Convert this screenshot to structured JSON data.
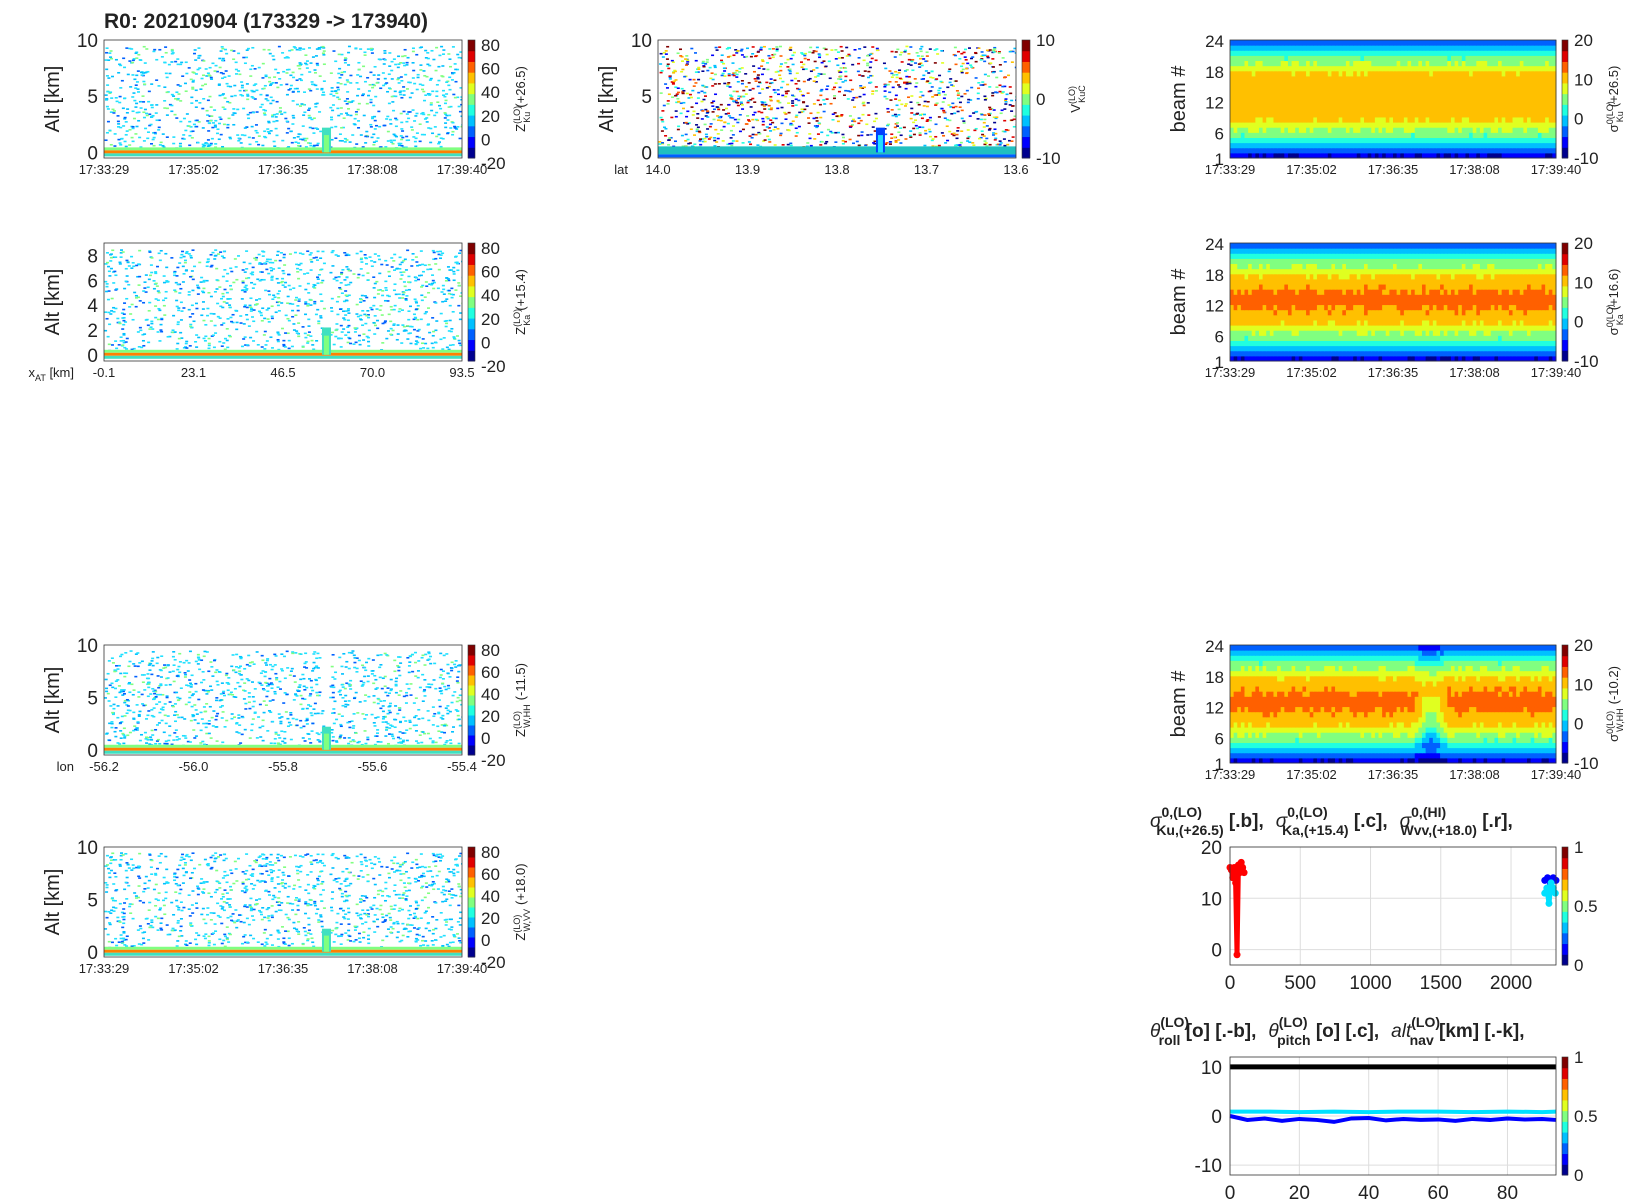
{
  "figure_title": "R0:  20210904 (173329 -> 173940)",
  "colormap": [
    "#00008f",
    "#0000ff",
    "#0060ff",
    "#00c0ff",
    "#20ffe0",
    "#80ff80",
    "#e0ff20",
    "#ffc000",
    "#ff6000",
    "#e00000",
    "#800000"
  ],
  "chart_data": [
    {
      "id": "zku",
      "type": "heatmap",
      "ylabel": "Alt [km]",
      "yticks": [
        "0",
        "5",
        "10"
      ],
      "ylim": [
        -0.5,
        10
      ],
      "xlabel": "",
      "xticks": [
        "17:33:29",
        "17:35:02",
        "17:36:35",
        "17:38:08",
        "17:39:40"
      ],
      "cbar_ticks": [
        "80",
        "60",
        "40",
        "20",
        "0",
        "-20"
      ],
      "clim": [
        -30,
        80
      ],
      "cbar_label_main": "Z",
      "cbar_label_sup": "(LO)",
      "cbar_label_sub": "Ku",
      "cbar_label_suffix": "(+26.5)",
      "description": "sparse noise field (-10..10 dBZ) above surface band at 0 km; convective column near 17:37:40 up to ~2 km"
    },
    {
      "id": "vkuc",
      "type": "heatmap",
      "ylabel": "Alt [km]",
      "yticks": [
        "0",
        "5",
        "10"
      ],
      "ylim": [
        -0.5,
        10
      ],
      "xlabel": "lat",
      "xticks": [
        "14.0",
        "13.9",
        "13.8",
        "13.7",
        "13.6"
      ],
      "cbar_ticks": [
        "10",
        "0",
        "-10"
      ],
      "clim": [
        -13,
        13
      ],
      "cbar_label_main": "V",
      "cbar_label_sup": "(LO)",
      "cbar_label_sub": "KuC",
      "cbar_label_suffix": ""
    },
    {
      "id": "sku",
      "type": "heatmap",
      "ylabel": "beam #",
      "yticks": [
        "1",
        "6",
        "12",
        "18",
        "24"
      ],
      "ylim": [
        1,
        24
      ],
      "xticks": [
        "17:33:29",
        "17:35:02",
        "17:36:35",
        "17:38:08",
        "17:39:40"
      ],
      "cbar_ticks": [
        "20",
        "10",
        "0",
        "-10"
      ],
      "clim": [
        -10,
        20
      ],
      "cbar_label_main": "σ",
      "cbar_label_sup": "0(LO)",
      "cbar_label_sub": "Ku",
      "cbar_label_suffix": "(+26.5)"
    },
    {
      "id": "zka",
      "type": "heatmap",
      "ylabel": "Alt [km]",
      "yticks": [
        "0",
        "2",
        "4",
        "6",
        "8"
      ],
      "ylim": [
        -0.5,
        9
      ],
      "xlabel": "x",
      "xlabel_sub": "AT",
      "xlabel_suffix": " [km]",
      "xticks": [
        "-0.1",
        "23.1",
        "46.5",
        "70.0",
        "93.5"
      ],
      "cbar_ticks": [
        "80",
        "60",
        "40",
        "20",
        "0",
        "-20"
      ],
      "clim": [
        -30,
        80
      ],
      "cbar_label_main": "Z",
      "cbar_label_sup": "(LO)",
      "cbar_label_sub": "Ka",
      "cbar_label_suffix": "(+15.4)"
    },
    {
      "id": "ska",
      "type": "heatmap",
      "ylabel": "beam #",
      "yticks": [
        "1",
        "6",
        "12",
        "18",
        "24"
      ],
      "ylim": [
        1,
        24
      ],
      "xticks": [
        "17:33:29",
        "17:35:02",
        "17:36:35",
        "17:38:08",
        "17:39:40"
      ],
      "cbar_ticks": [
        "20",
        "10",
        "0",
        "-10"
      ],
      "clim": [
        -10,
        20
      ],
      "cbar_label_main": "σ",
      "cbar_label_sup": "0(LO)",
      "cbar_label_sub": "Ka",
      "cbar_label_suffix": "(+16.6)"
    },
    {
      "id": "zwhh",
      "type": "heatmap",
      "ylabel": "Alt [km]",
      "yticks": [
        "0",
        "5",
        "10"
      ],
      "ylim": [
        -0.5,
        10
      ],
      "xlabel": "lon",
      "xticks": [
        "-56.2",
        "-56.0",
        "-55.8",
        "-55.6",
        "-55.4"
      ],
      "cbar_ticks": [
        "80",
        "60",
        "40",
        "20",
        "0",
        "-20"
      ],
      "clim": [
        -30,
        80
      ],
      "cbar_label_main": "Z",
      "cbar_label_sup": "(LO)",
      "cbar_label_sub": "W,HH",
      "cbar_label_suffix": "(-11.5)"
    },
    {
      "id": "swhh",
      "type": "heatmap",
      "ylabel": "beam #",
      "yticks": [
        "1",
        "6",
        "12",
        "18",
        "24"
      ],
      "ylim": [
        1,
        24
      ],
      "xticks": [
        "17:33:29",
        "17:35:02",
        "17:36:35",
        "17:38:08",
        "17:39:40"
      ],
      "cbar_ticks": [
        "20",
        "10",
        "0",
        "-10"
      ],
      "clim": [
        -10,
        20
      ],
      "cbar_label_main": "σ",
      "cbar_label_sup": "0(LO)",
      "cbar_label_sub": "W,HH",
      "cbar_label_suffix": "(-10.2)"
    },
    {
      "id": "zwvv",
      "type": "heatmap",
      "ylabel": "Alt [km]",
      "yticks": [
        "0",
        "5",
        "10"
      ],
      "ylim": [
        -0.5,
        10
      ],
      "xlabel": "",
      "xticks": [
        "17:33:29",
        "17:35:02",
        "17:36:35",
        "17:38:08",
        "17:39:40"
      ],
      "cbar_ticks": [
        "80",
        "60",
        "40",
        "20",
        "0",
        "-20"
      ],
      "clim": [
        -30,
        80
      ],
      "cbar_label_main": "Z",
      "cbar_label_sup": "(LO)",
      "cbar_label_sub": "W,VV",
      "cbar_label_suffix": "(+18.0)"
    },
    {
      "id": "sigma_line",
      "type": "scatter",
      "title_parts": [
        {
          "sym": "σ",
          "sup": "0,(LO)",
          "sub": "Ku,(+26.5)",
          "tail": " [.b],"
        },
        {
          "sym": "σ",
          "sup": "0,(LO)",
          "sub": "Ka,(+15.4)",
          "tail": " [.c],"
        },
        {
          "sym": "σ",
          "sup": "0,(HI)",
          "sub": "Wvv,(+18.0)",
          "tail": " [.r],"
        }
      ],
      "xticks": [
        "0",
        "500",
        "1000",
        "1500",
        "2000"
      ],
      "xlim": [
        0,
        2320
      ],
      "yticks": [
        "0",
        "10",
        "20"
      ],
      "ylim": [
        -3,
        20
      ],
      "cbar_ticks": [
        "1",
        "0.5",
        "0"
      ],
      "series": [
        {
          "color": "#ff0000",
          "x": [
            0,
            10,
            20,
            30,
            40,
            50,
            60,
            70,
            80,
            90,
            100
          ],
          "y": [
            16,
            15.5,
            14,
            16,
            13,
            -1,
            16.5,
            15,
            17,
            16,
            15
          ]
        },
        {
          "color": "#0000ff",
          "x": [
            2240,
            2260,
            2280,
            2300,
            2320
          ],
          "y": [
            13.5,
            14,
            13,
            14,
            13.5
          ]
        },
        {
          "color": "#00e0ff",
          "x": [
            2240,
            2255,
            2270,
            2285,
            2300,
            2315
          ],
          "y": [
            11,
            12,
            9,
            13,
            12,
            11
          ]
        }
      ]
    },
    {
      "id": "nav_line",
      "type": "line",
      "title_parts": [
        {
          "sym": "θ",
          "sup": "(LO)",
          "sub": "roll",
          "tail": " [o] [.-b],"
        },
        {
          "sym": "θ",
          "sup": "(LO)",
          "sub": "pitch",
          "tail": " [o] [.c],"
        },
        {
          "sym": "alt",
          "sup": "(LO)",
          "sub": "nav",
          "tail": " [km] [.-k],"
        }
      ],
      "xticks": [
        "0",
        "20",
        "40",
        "60",
        "80"
      ],
      "xlim": [
        0,
        94
      ],
      "yticks": [
        "-10",
        "0",
        "10"
      ],
      "ylim": [
        -12,
        12
      ],
      "cbar_ticks": [
        "1",
        "0.5",
        "0"
      ],
      "series": [
        {
          "name": "roll",
          "color": "#0000ff",
          "x": [
            0,
            5,
            10,
            15,
            20,
            25,
            30,
            35,
            40,
            45,
            50,
            55,
            60,
            65,
            70,
            75,
            80,
            85,
            90,
            94
          ],
          "y": [
            0,
            -0.8,
            -0.5,
            -1,
            -0.6,
            -0.8,
            -1.2,
            -0.5,
            -0.4,
            -0.9,
            -0.6,
            -0.8,
            -0.7,
            -1,
            -0.6,
            -0.8,
            -0.5,
            -0.7,
            -0.6,
            -0.8
          ]
        },
        {
          "name": "pitch",
          "color": "#00e0ff",
          "x": [
            0,
            10,
            20,
            30,
            40,
            50,
            60,
            70,
            80,
            90,
            94
          ],
          "y": [
            0.9,
            0.9,
            0.8,
            0.9,
            0.8,
            0.9,
            0.9,
            0.8,
            0.9,
            0.8,
            0.9
          ]
        },
        {
          "name": "alt",
          "color": "#000000",
          "x": [
            0,
            94
          ],
          "y": [
            10,
            10
          ]
        }
      ]
    }
  ]
}
